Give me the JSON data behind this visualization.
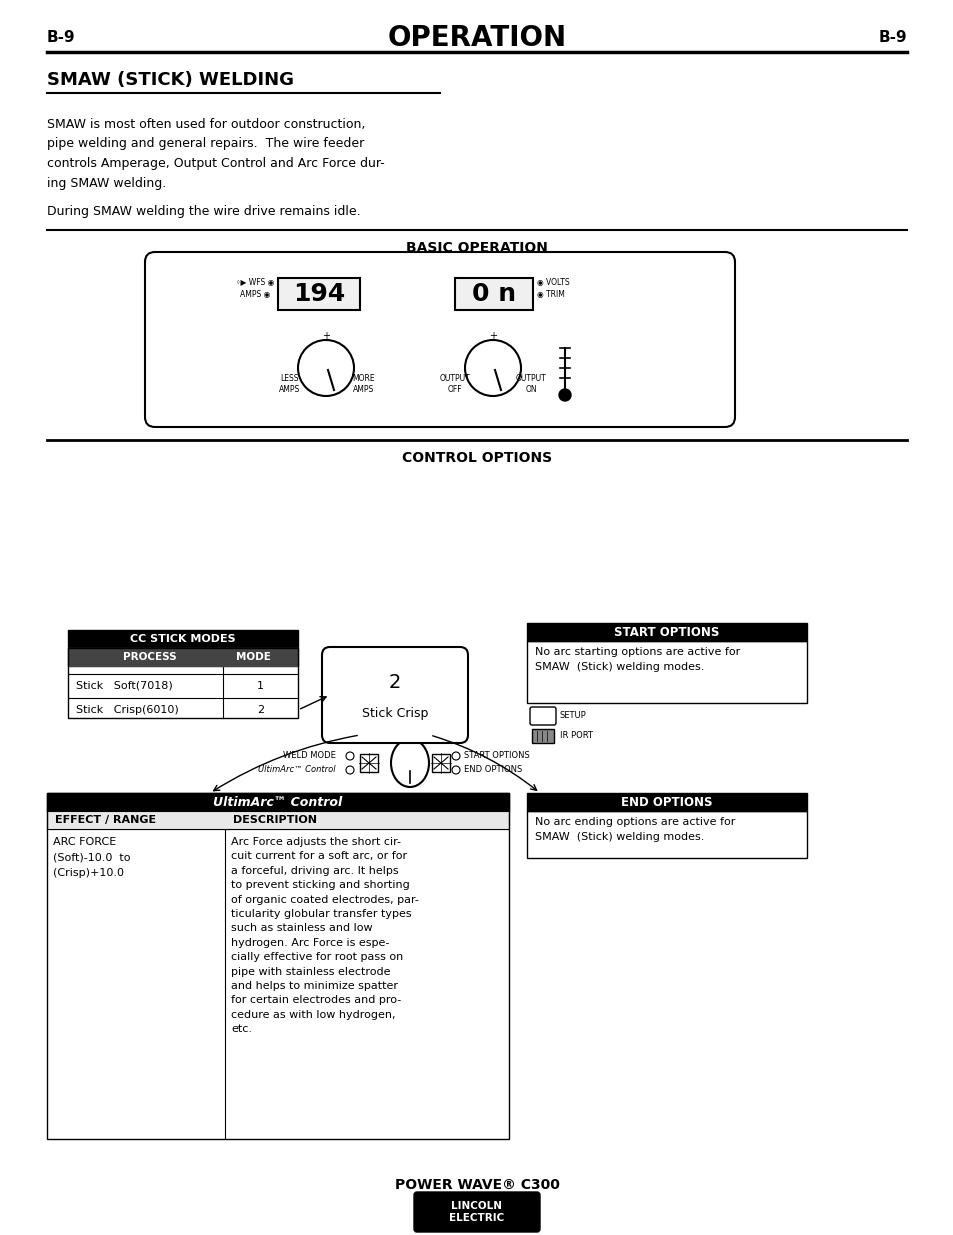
{
  "page_label": "B-9",
  "title": "OPERATION",
  "section_title": "SMAW (STICK) WELDING",
  "body_text1": "SMAW is most often used for outdoor construction,\npipe welding and general repairs.  The wire feeder\ncontrols Amperage, Output Control and Arc Force dur-\ning SMAW welding.",
  "body_text2": "During SMAW welding the wire drive remains idle.",
  "basic_op_label": "BASIC OPERATION",
  "control_options_label": "CONTROL OPTIONS",
  "cc_stick_title": "CC STICK MODES",
  "cc_col1": "PROCESS",
  "cc_col2": "MODE",
  "cc_row1_proc": "Stick   Soft(7018)",
  "cc_row1_mode": "1",
  "cc_row2_proc": "Stick   Crisp(6010)",
  "cc_row2_mode": "2",
  "mode_num": "2",
  "mode_name": "Stick Crisp",
  "weld_mode_label": "WELD MODE",
  "ultim_label": "UltimArc™ Control",
  "start_options_label": "START OPTIONS",
  "start_options_text": "No arc starting options are active for\nSMAW  (Stick) welding modes.",
  "setup_label": "SETUP",
  "ir_port_label": "IR PORT",
  "start_opt_btn": "START OPTIONS",
  "end_opt_btn": "END OPTIONS",
  "end_options_label": "END OPTIONS",
  "end_options_text": "No arc ending options are active for\nSMAW  (Stick) welding modes.",
  "ultim_arc_table_title": "UltimArc™ Control",
  "ultim_col1": "EFFECT / RANGE",
  "ultim_col2": "DESCRIPTION",
  "ultim_row1_effect": "ARC FORCE\n(Soft)-10.0  to\n(Crisp)+10.0",
  "ultim_row1_desc": "Arc Force adjusts the short cir-\ncuit current for a soft arc, or for\na forceful, driving arc. It helps\nto prevent sticking and shorting\nof organic coated electrodes, par-\nticularity globular transfer types\nsuch as stainless and low\nhydrogen. Arc Force is espe-\ncially effective for root pass on\npipe with stainless electrode\nand helps to minimize spatter\nfor certain electrodes and pro-\ncedure as with low hydrogen,\netc.",
  "footer_title": "POWER WAVE® C300",
  "bg_color": "#ffffff",
  "text_color": "#000000"
}
